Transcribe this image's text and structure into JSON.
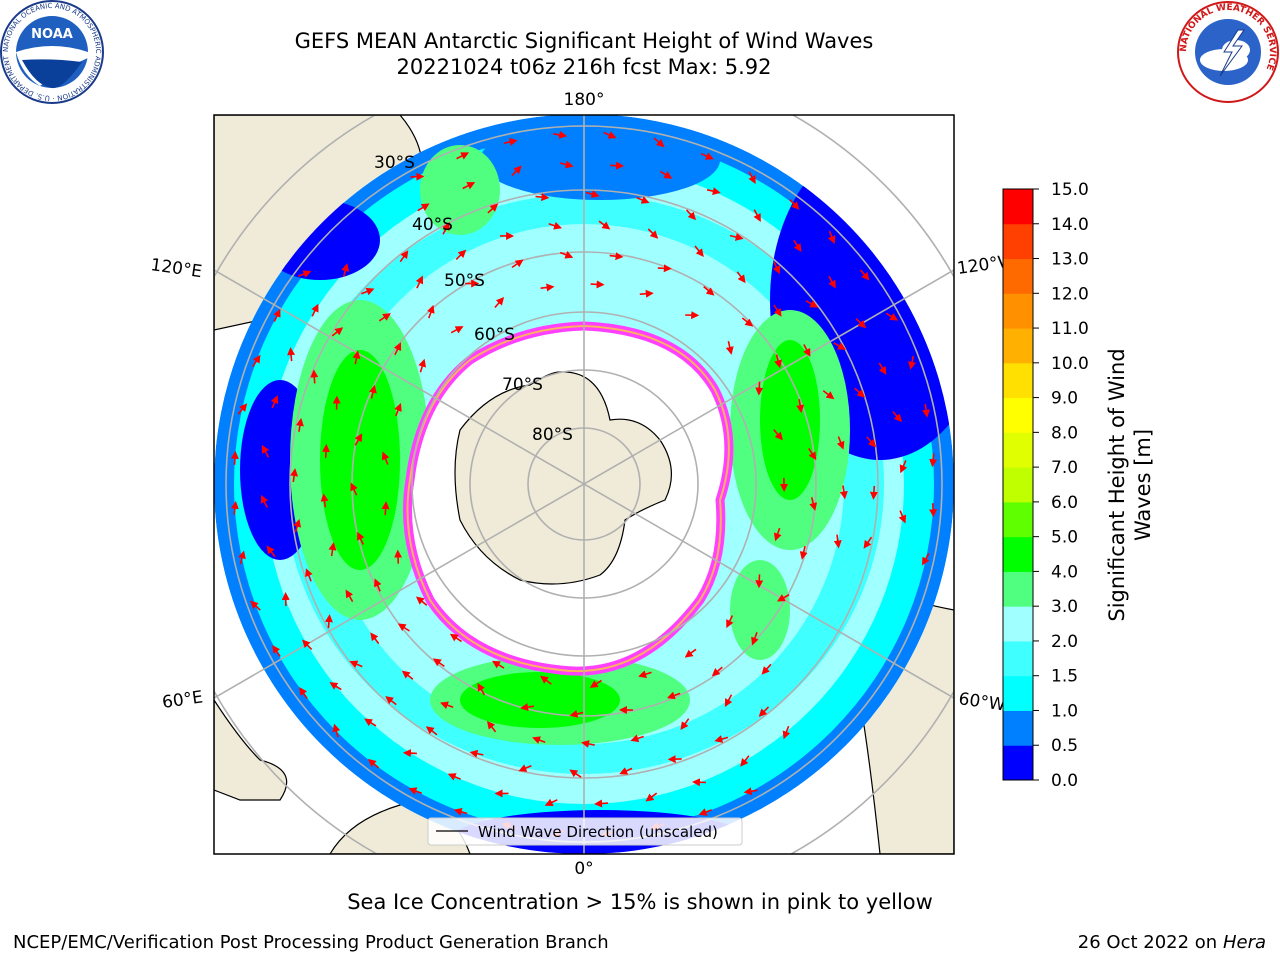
{
  "header": {
    "title_line1": "GEFS MEAN Antarctic Significant Height of Wind Waves",
    "title_line2": "20221024 t06z 216h fcst   Max: 5.92"
  },
  "logos": {
    "left": {
      "icon": "noaa-logo-icon",
      "text": "NOAA",
      "ring_text": "NATIONAL OCEANIC AND ATMOSPHERIC ADMINISTRATION · U.S. DEPARTMENT OF COMMERCE"
    },
    "right": {
      "icon": "nws-logo-icon",
      "ring_text": "NATIONAL WEATHER SERVICE"
    }
  },
  "map": {
    "projection": "south-polar-stereographic",
    "longitude_labels": [
      "180°",
      "120°E",
      "120°W",
      "60°E",
      "60°W",
      "0°"
    ],
    "latitude_labels": [
      "30°S",
      "40°S",
      "50°S",
      "60°S",
      "70°S",
      "80°S"
    ],
    "legend_label": "Wind Wave Direction (unscaled)",
    "colors": {
      "land": "#efebd8",
      "ice": "#ffffff",
      "arrow": "#ff0000",
      "grid": "#b0b0b0"
    }
  },
  "colorbar": {
    "label_line1": "Significant Height of Wind",
    "label_line2": "Waves [m]",
    "ticks": [
      "0.0",
      "0.5",
      "1.0",
      "1.5",
      "2.0",
      "3.0",
      "4.0",
      "5.0",
      "6.0",
      "7.0",
      "8.0",
      "9.0",
      "10.0",
      "11.0",
      "12.0",
      "13.0",
      "14.0",
      "15.0"
    ],
    "colors": [
      "#0000ff",
      "#0080ff",
      "#00ffff",
      "#40ffff",
      "#a0ffff",
      "#50ff80",
      "#00ff00",
      "#60ff00",
      "#c0ff00",
      "#e0ff00",
      "#ffff00",
      "#ffe000",
      "#ffb000",
      "#ff9000",
      "#ff6a00",
      "#ff4000",
      "#ff0000"
    ]
  },
  "caption": "Sea Ice Concentration > 15% is shown in pink to yellow",
  "footer": {
    "left": "NCEP/EMC/Verification Post Processing Product Generation Branch",
    "right_prefix": "26 Oct 2022 on ",
    "right_host": "Hera"
  }
}
